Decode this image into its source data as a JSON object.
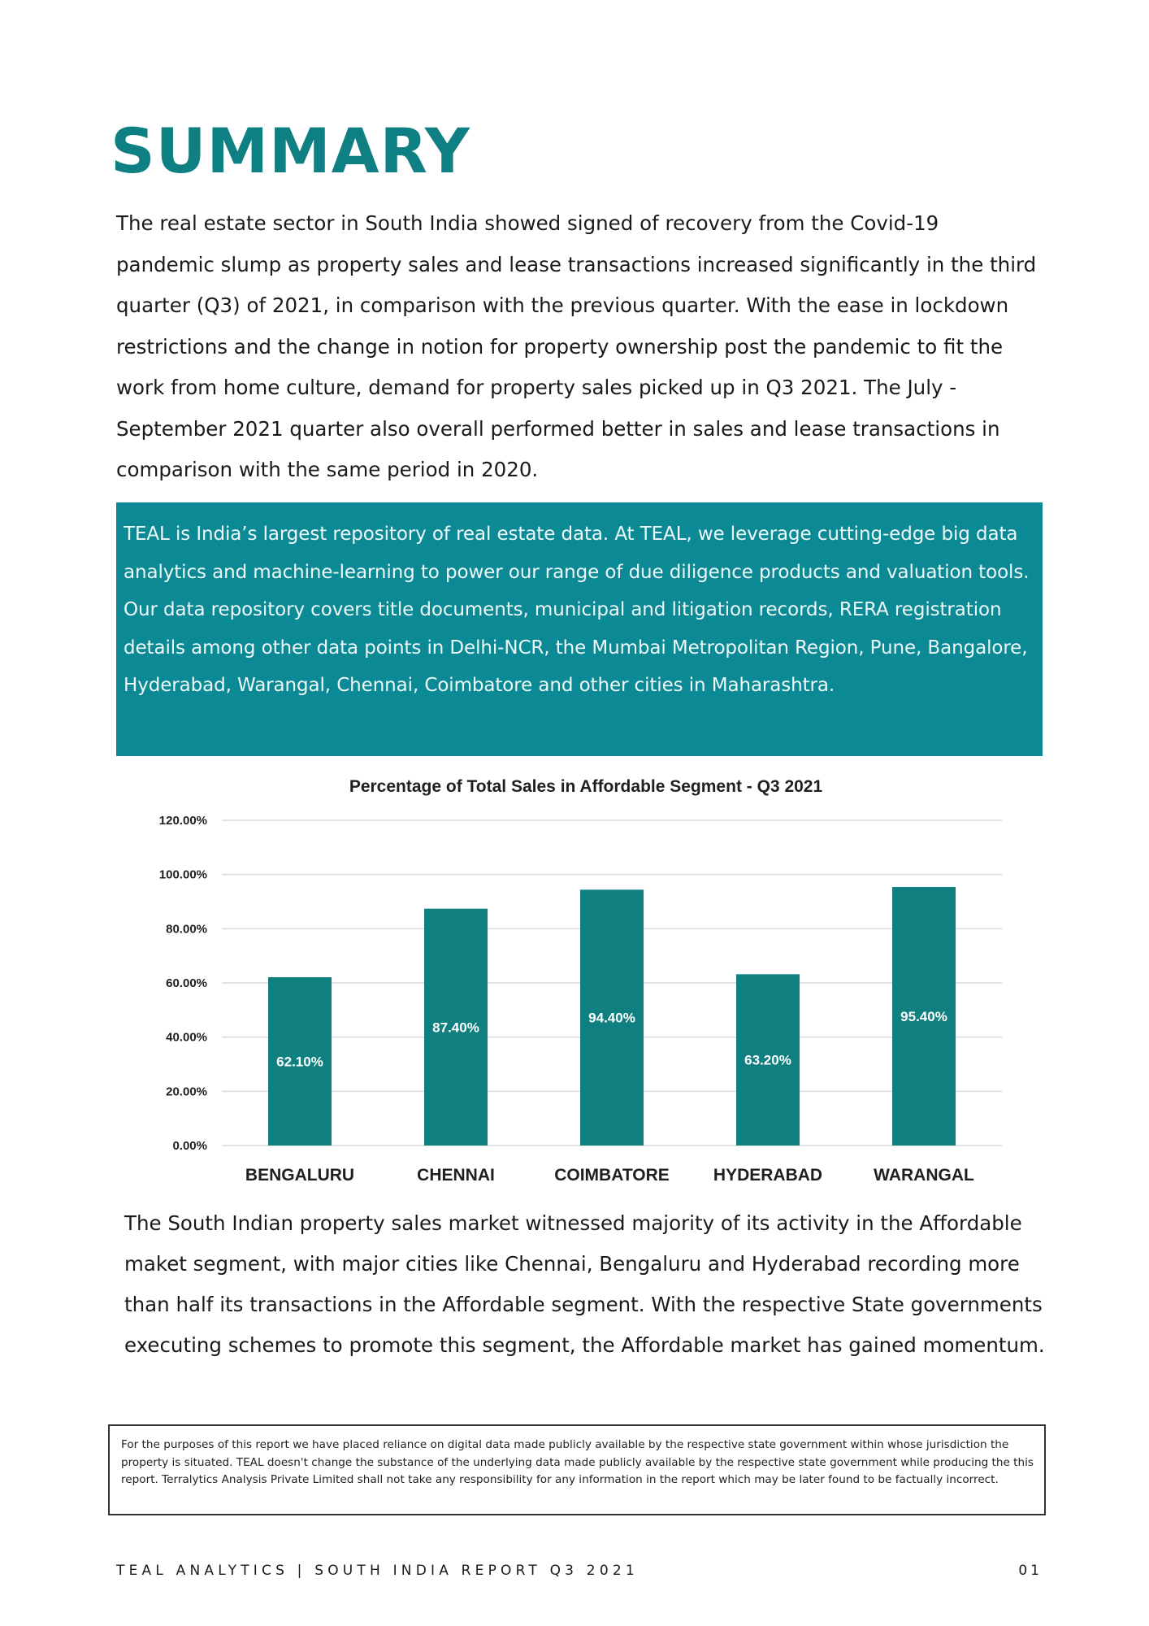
{
  "page": {
    "title": "SUMMARY",
    "intro": "The real estate sector in South India showed signed of recovery from the Covid-19 pandemic slump as property sales and lease transactions increased significantly in the third quarter (Q3) of 2021, in comparison with the previous quarter. With the ease in lockdown restrictions and the change in notion for property ownership post the pandemic to fit the work from home culture, demand for property sales picked up in Q3 2021. The July -September 2021 quarter also overall performed better in sales and lease transactions in comparison with the same period in 2020.",
    "about_teal": "TEAL is India’s largest repository of real estate data. At TEAL, we leverage cutting-edge big data analytics and machine-learning to power our range of due diligence products and valuation tools. Our data repository covers title documents, municipal and litigation records, RERA registration details among other data points in Delhi-NCR, the Mumbai Metropolitan Region, Pune, Bangalore, Hyderabad, Warangal, Chennai, Coimbatore and other cities in Maharashtra.",
    "analysis": "The South Indian property sales market witnessed majority of its activity in the Affordable maket segment, with major cities like Chennai, Bengaluru and Hyderabad recording more than half its transactions in the Affordable segment. With the respective State governments executing schemes to promote this segment, the Affordable market has gained momentum.",
    "disclaimer": "For the purposes of this report we have placed reliance on digital data made publicly available by the respective state government within whose jurisdiction the property is situated. TEAL doesn't change the substance of the underlying data made publicly available by the respective state government while producing the this report. Terralytics Analysis Private Limited shall not take any responsibility for any information in the report which may be later found to be factually incorrect.",
    "footer_left": "TEAL ANALYTICS | SOUTH INDIA REPORT Q3 2021",
    "footer_right": "01"
  },
  "colors": {
    "title": "#0e7f82",
    "box_background": "#0b8a96",
    "bar": "#0f7f80"
  },
  "chart_data": {
    "type": "bar",
    "title": "Percentage of Total Sales in Affordable Segment - Q3 2021",
    "categories": [
      "BENGALURU",
      "CHENNAI",
      "COIMBATORE",
      "HYDERABAD",
      "WARANGAL"
    ],
    "values": [
      62.1,
      87.4,
      94.4,
      63.2,
      95.4
    ],
    "data_labels": [
      "62.10%",
      "87.40%",
      "94.40%",
      "63.20%",
      "95.40%"
    ],
    "yticks": [
      "0.00%",
      "20.00%",
      "40.00%",
      "60.00%",
      "80.00%",
      "100.00%",
      "120.00%"
    ],
    "ylim": [
      0,
      120
    ],
    "xlabel": "",
    "ylabel": "",
    "grid": true,
    "legend": "none"
  }
}
